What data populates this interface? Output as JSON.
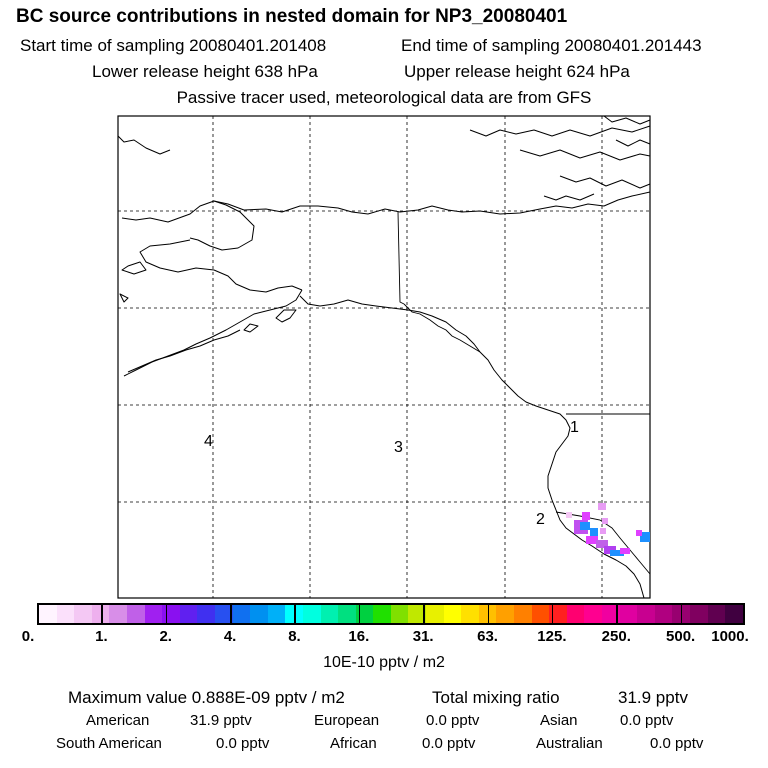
{
  "header": {
    "title": "BC  source contributions in nested domain for NP3_20080401",
    "start_time": "Start time of sampling 20080401.201408",
    "end_time": "End time of sampling 20080401.201443",
    "lower_height": "Lower release height  638 hPa",
    "upper_height": "Upper release height  624 hPa",
    "passive_note": "Passive tracer used, meteorological data are from GFS"
  },
  "map": {
    "region_labels": [
      "4",
      "3",
      "2",
      "1"
    ],
    "plume_color_magenta": "#e040ff",
    "plume_color_blue": "#1e90ff"
  },
  "colorbar": {
    "tick_labels": [
      "0.",
      "1.",
      "2.",
      "4.",
      "8.",
      "16.",
      "31.",
      "63.",
      "125.",
      "250.",
      "500.",
      "1000."
    ],
    "colors": [
      "#fff4ff",
      "#fbe0fb",
      "#f4c8f4",
      "#eeb0ee",
      "#d88ee8",
      "#c060e8",
      "#a020f0",
      "#8a10f0",
      "#6020f0",
      "#4030f0",
      "#2850f0",
      "#1070f0",
      "#0090f0",
      "#00b0f8",
      "#00ffff",
      "#00ffe0",
      "#00f0b0",
      "#00e080",
      "#00d040",
      "#20e000",
      "#80e000",
      "#c0e800",
      "#e8f000",
      "#ffff00",
      "#ffe000",
      "#ffc000",
      "#ffa000",
      "#ff8000",
      "#ff5000",
      "#ff2020",
      "#ff0070",
      "#ff0090",
      "#f000a0",
      "#e000a0",
      "#c80090",
      "#b00080",
      "#980070",
      "#800060",
      "#600050",
      "#400040"
    ],
    "units": "10E-10 pptv / m2"
  },
  "summary": {
    "max_label": "Maximum value  0.888E-09 pptv / m2",
    "total_label": "Total mixing ratio",
    "total_value": "31.9 pptv",
    "rows": [
      [
        {
          "name": "American",
          "value": "31.9 pptv"
        },
        {
          "name": "European",
          "value": "0.0 pptv"
        },
        {
          "name": "Asian",
          "value": "0.0 pptv"
        }
      ],
      [
        {
          "name": "South American",
          "value": "0.0 pptv"
        },
        {
          "name": "African",
          "value": "0.0 pptv"
        },
        {
          "name": "Australian",
          "value": "0.0 pptv"
        }
      ]
    ]
  }
}
